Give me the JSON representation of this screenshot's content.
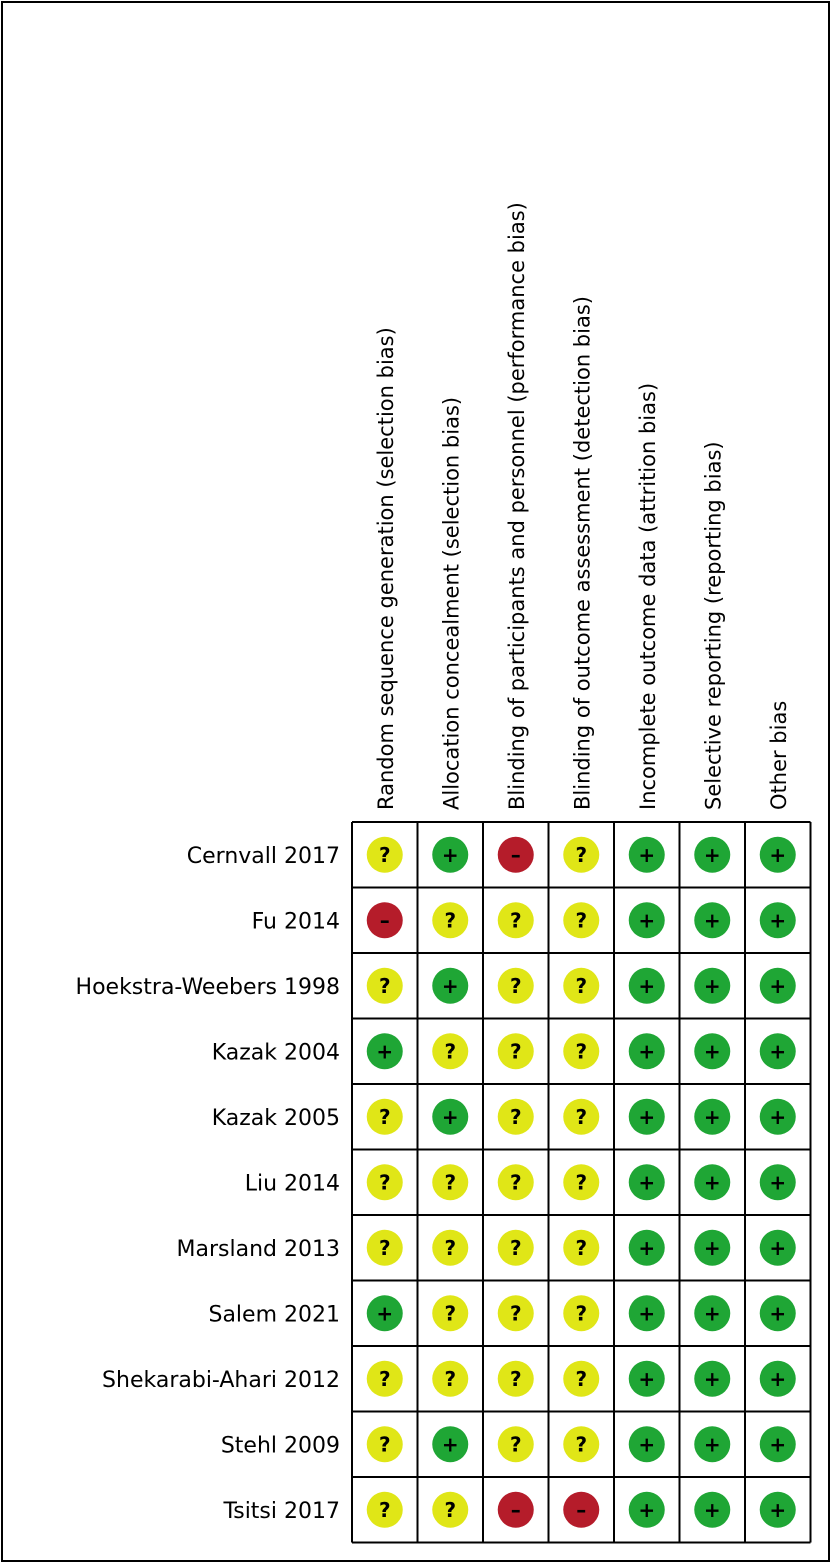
{
  "chart_data": {
    "type": "table",
    "columns": [
      "Random sequence generation (selection bias)",
      "Allocation concealment (selection bias)",
      "Blinding of participants and personnel (performance bias)",
      "Blinding of outcome assessment (detection bias)",
      "Incomplete outcome data (attrition bias)",
      "Selective reporting (reporting bias)",
      "Other bias"
    ],
    "rows": [
      {
        "study": "Cernvall 2017",
        "ratings": [
          "?",
          "+",
          "-",
          "?",
          "+",
          "+",
          "+"
        ]
      },
      {
        "study": "Fu 2014",
        "ratings": [
          "-",
          "?",
          "?",
          "?",
          "+",
          "+",
          "+"
        ]
      },
      {
        "study": "Hoekstra-Weebers 1998",
        "ratings": [
          "?",
          "+",
          "?",
          "?",
          "+",
          "+",
          "+"
        ]
      },
      {
        "study": "Kazak 2004",
        "ratings": [
          "+",
          "?",
          "?",
          "?",
          "+",
          "+",
          "+"
        ]
      },
      {
        "study": "Kazak 2005",
        "ratings": [
          "?",
          "+",
          "?",
          "?",
          "+",
          "+",
          "+"
        ]
      },
      {
        "study": "Liu 2014",
        "ratings": [
          "?",
          "?",
          "?",
          "?",
          "+",
          "+",
          "+"
        ]
      },
      {
        "study": "Marsland 2013",
        "ratings": [
          "?",
          "?",
          "?",
          "?",
          "+",
          "+",
          "+"
        ]
      },
      {
        "study": "Salem 2021",
        "ratings": [
          "+",
          "?",
          "?",
          "?",
          "+",
          "+",
          "+"
        ]
      },
      {
        "study": "Shekarabi-Ahari 2012",
        "ratings": [
          "?",
          "?",
          "?",
          "?",
          "+",
          "+",
          "+"
        ]
      },
      {
        "study": "Stehl 2009",
        "ratings": [
          "?",
          "+",
          "?",
          "?",
          "+",
          "+",
          "+"
        ]
      },
      {
        "study": "Tsitsi 2017",
        "ratings": [
          "?",
          "?",
          "-",
          "-",
          "+",
          "+",
          "+"
        ]
      }
    ],
    "symbols": {
      "+": "+",
      "?": "?",
      "-": "–"
    },
    "colors": {
      "+": "#1fa635",
      "?": "#e0e617",
      "-": "#b51c2a"
    }
  }
}
